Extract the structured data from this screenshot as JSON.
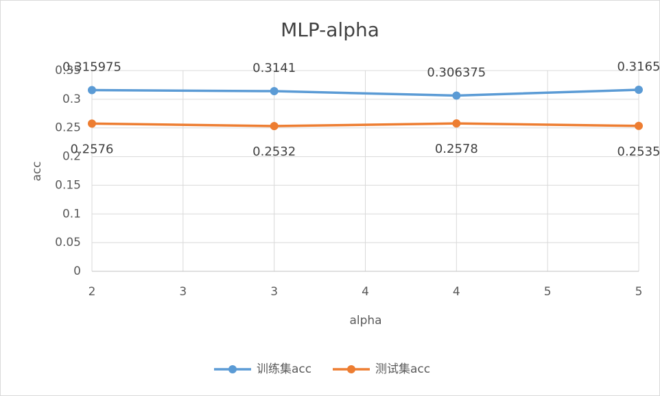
{
  "chart_data": {
    "type": "line",
    "title": "MLP-alpha",
    "x_label": "alpha",
    "y_label": "acc",
    "x": [
      2,
      3,
      4,
      5
    ],
    "series": [
      {
        "name": "训练集acc",
        "color": "#5b9bd5",
        "values": [
          0.315975,
          0.3141,
          0.306375,
          0.3165
        ]
      },
      {
        "name": "测试集acc",
        "color": "#ed7d31",
        "values": [
          0.2576,
          0.2532,
          0.2578,
          0.2535
        ]
      }
    ],
    "xlim": [
      2,
      5
    ],
    "xticks": [
      2,
      {
        "value": 2.5,
        "label": "3"
      },
      3,
      {
        "value": 3.5,
        "label": "4"
      },
      4,
      {
        "value": 4.5,
        "label": "5"
      },
      5
    ],
    "ylim": [
      0,
      0.35
    ],
    "yticks": [
      0,
      0.05,
      0.1,
      0.15,
      0.2,
      0.25,
      0.3,
      0.35
    ],
    "grid": true,
    "legend": "bottom"
  }
}
